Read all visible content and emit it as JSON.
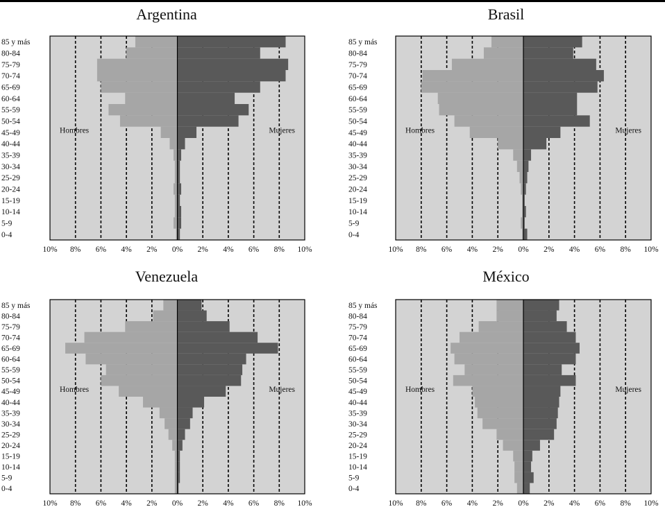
{
  "chart_data": [
    {
      "type": "bar",
      "title": "Argentina",
      "orientation": "population-pyramid",
      "categories": [
        "85 y más",
        "80-84",
        "75-79",
        "70-74",
        "65-69",
        "60-64",
        "55-59",
        "50-54",
        "45-49",
        "40-44",
        "35-39",
        "30-34",
        "25-29",
        "20-24",
        "15-19",
        "10-14",
        "5-9",
        "0-4"
      ],
      "series": [
        {
          "name": "Hombres",
          "color": "#a6a6a6",
          "values": [
            3.3,
            4.0,
            6.3,
            6.3,
            6.0,
            4.1,
            5.4,
            4.5,
            1.3,
            0.6,
            0.3,
            0.2,
            0.2,
            0.3,
            0.2,
            0.2,
            0.3,
            0.1
          ]
        },
        {
          "name": "Mujeres",
          "color": "#595959",
          "values": [
            8.5,
            6.5,
            8.7,
            8.5,
            6.5,
            4.5,
            5.6,
            4.8,
            1.5,
            0.6,
            0.3,
            0.2,
            0.2,
            0.3,
            0.2,
            0.3,
            0.3,
            0.2
          ]
        }
      ],
      "xlim": [
        -10,
        10
      ],
      "x_ticks": [
        "10%",
        "8%",
        "6%",
        "4%",
        "2%",
        "0%",
        "2%",
        "4%",
        "6%",
        "8%",
        "10%"
      ],
      "grid": "dashed vertical at 2% steps"
    },
    {
      "type": "bar",
      "title": "Brasil",
      "orientation": "population-pyramid",
      "categories": [
        "85 y más",
        "80-84",
        "75-79",
        "70-74",
        "65-69",
        "60-64",
        "55-59",
        "50-54",
        "45-49",
        "40-44",
        "35-39",
        "30-34",
        "25-29",
        "20-24",
        "15-19",
        "10-14",
        "5-9",
        "0-4"
      ],
      "series": [
        {
          "name": "Hombres",
          "color": "#a6a6a6",
          "values": [
            2.5,
            3.1,
            5.6,
            7.9,
            8.0,
            6.7,
            6.6,
            5.4,
            4.2,
            2.0,
            0.8,
            0.5,
            0.3,
            0.2,
            0.1,
            0.1,
            0.2,
            0.1
          ]
        },
        {
          "name": "Mujeres",
          "color": "#595959",
          "values": [
            4.6,
            3.9,
            5.7,
            6.3,
            5.8,
            4.2,
            4.2,
            5.2,
            2.9,
            1.8,
            0.6,
            0.4,
            0.3,
            0.2,
            0.1,
            0.2,
            0.1,
            0.3
          ]
        }
      ],
      "xlim": [
        -10,
        10
      ],
      "x_ticks": [
        "10%",
        "8%",
        "6%",
        "4%",
        "2%",
        "0%",
        "2%",
        "4%",
        "6%",
        "8%",
        "10%"
      ],
      "grid": "dashed vertical at 2% steps"
    },
    {
      "type": "bar",
      "title": "Venezuela",
      "orientation": "population-pyramid",
      "categories": [
        "85 y más",
        "80-84",
        "75-79",
        "70-74",
        "65-69",
        "60-64",
        "55-59",
        "50-54",
        "45-49",
        "40-44",
        "35-39",
        "30-34",
        "25-29",
        "20-24",
        "15-19",
        "10-14",
        "5-9",
        "0-4"
      ],
      "series": [
        {
          "name": "Hombres",
          "color": "#a6a6a6",
          "values": [
            1.1,
            1.9,
            4.1,
            7.3,
            8.8,
            7.2,
            5.6,
            6.0,
            4.6,
            2.7,
            1.4,
            1.0,
            0.7,
            0.4,
            0.2,
            0.2,
            0.2,
            0.2
          ]
        },
        {
          "name": "Mujeres",
          "color": "#595959",
          "values": [
            1.9,
            2.3,
            4.1,
            6.3,
            7.9,
            5.4,
            5.1,
            5.0,
            3.8,
            2.1,
            1.2,
            1.0,
            0.6,
            0.4,
            0.2,
            0.2,
            0.2,
            0.1
          ]
        }
      ],
      "xlim": [
        -10,
        10
      ],
      "x_ticks": [
        "10%",
        "8%",
        "6%",
        "4%",
        "2%",
        "0%",
        "2%",
        "4%",
        "6%",
        "8%",
        "10%"
      ],
      "grid": "dashed vertical at 2% steps"
    },
    {
      "type": "bar",
      "title": "México",
      "orientation": "population-pyramid",
      "categories": [
        "85 y más",
        "80-84",
        "75-79",
        "70-74",
        "65-69",
        "60-64",
        "55-59",
        "50-54",
        "45-49",
        "40-44",
        "35-39",
        "30-34",
        "25-29",
        "20-24",
        "15-19",
        "10-14",
        "5-9",
        "0-4"
      ],
      "series": [
        {
          "name": "Hombres",
          "color": "#a6a6a6",
          "values": [
            2.1,
            2.1,
            3.5,
            5.0,
            5.7,
            5.4,
            4.6,
            5.5,
            4.0,
            3.8,
            3.6,
            3.2,
            2.1,
            1.6,
            0.8,
            0.7,
            0.7,
            0.5
          ]
        },
        {
          "name": "Mujeres",
          "color": "#595959",
          "values": [
            2.8,
            2.6,
            3.4,
            4.1,
            4.4,
            4.1,
            3.0,
            4.1,
            2.9,
            2.8,
            2.7,
            2.6,
            2.4,
            1.3,
            0.7,
            0.6,
            0.8,
            0.5
          ]
        }
      ],
      "xlim": [
        -10,
        10
      ],
      "x_ticks": [
        "10%",
        "8%",
        "6%",
        "4%",
        "2%",
        "0%",
        "2%",
        "4%",
        "6%",
        "8%",
        "10%"
      ],
      "grid": "dashed vertical at 2% steps"
    }
  ]
}
